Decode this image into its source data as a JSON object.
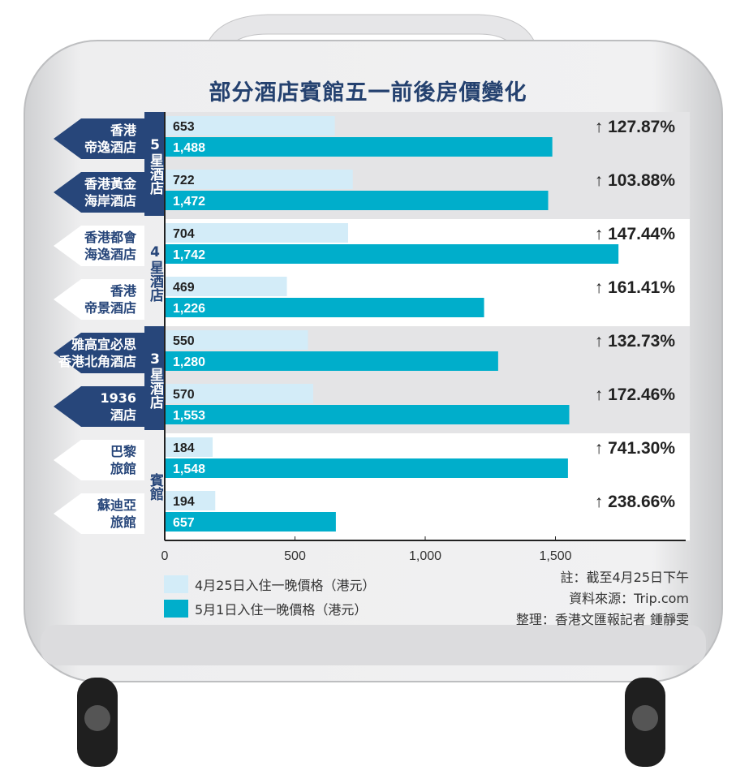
{
  "chart_data": {
    "type": "bar",
    "orientation": "horizontal",
    "title": "部分酒店賓館五一前後房價變化",
    "categories": [
      "香港\n帝逸酒店",
      "香港黃金\n海岸酒店",
      "香港都會\n海逸酒店",
      "香港\n帝景酒店",
      "雅高宜必思\n香港北角酒店",
      "1936\n酒店",
      "巴黎\n旅館",
      "蘇迪亞\n旅館"
    ],
    "groups": [
      {
        "label": "5星酒店",
        "members": [
          0,
          1
        ],
        "style": "dark"
      },
      {
        "label": "4星酒店",
        "members": [
          2,
          3
        ],
        "style": "light"
      },
      {
        "label": "3星酒店",
        "members": [
          4,
          5
        ],
        "style": "dark"
      },
      {
        "label": "賓館",
        "members": [
          6,
          7
        ],
        "style": "light"
      }
    ],
    "series": [
      {
        "name": "4月25日入住一晚價格（港元）",
        "color": "#d3ecf8",
        "values": [
          653,
          722,
          704,
          469,
          550,
          570,
          184,
          194
        ],
        "labels": [
          "653",
          "722",
          "704",
          "469",
          "550",
          "570",
          "184",
          "194"
        ]
      },
      {
        "name": "5月1日入住一晚價格（港元）",
        "color": "#00aecb",
        "values": [
          1488,
          1472,
          1742,
          1226,
          1280,
          1553,
          1548,
          657
        ],
        "labels": [
          "1,488",
          "1,472",
          "1,742",
          "1,226",
          "1,280",
          "1,553",
          "1,548",
          "657"
        ]
      }
    ],
    "changes": [
      "↑ 127.87%",
      "↑ 103.88%",
      "↑ 147.44%",
      "↑ 161.41%",
      "↑ 132.73%",
      "↑ 172.46%",
      "↑ 741.30%",
      "↑ 238.66%"
    ],
    "xlim": [
      0,
      2000
    ],
    "xticks": [
      0,
      500,
      1000,
      1500
    ],
    "xtick_labels": [
      "0",
      "500",
      "1,000",
      "1,500"
    ],
    "legend_placement": "bottom-left",
    "grid": false
  },
  "notes": [
    "註：截至4月25日下午",
    "資料來源：Trip.com",
    "整理：香港文匯報記者  鍾靜雯"
  ],
  "colors": {
    "navy": "#27467a",
    "accent": "#00aecb",
    "light": "#d3ecf8"
  }
}
